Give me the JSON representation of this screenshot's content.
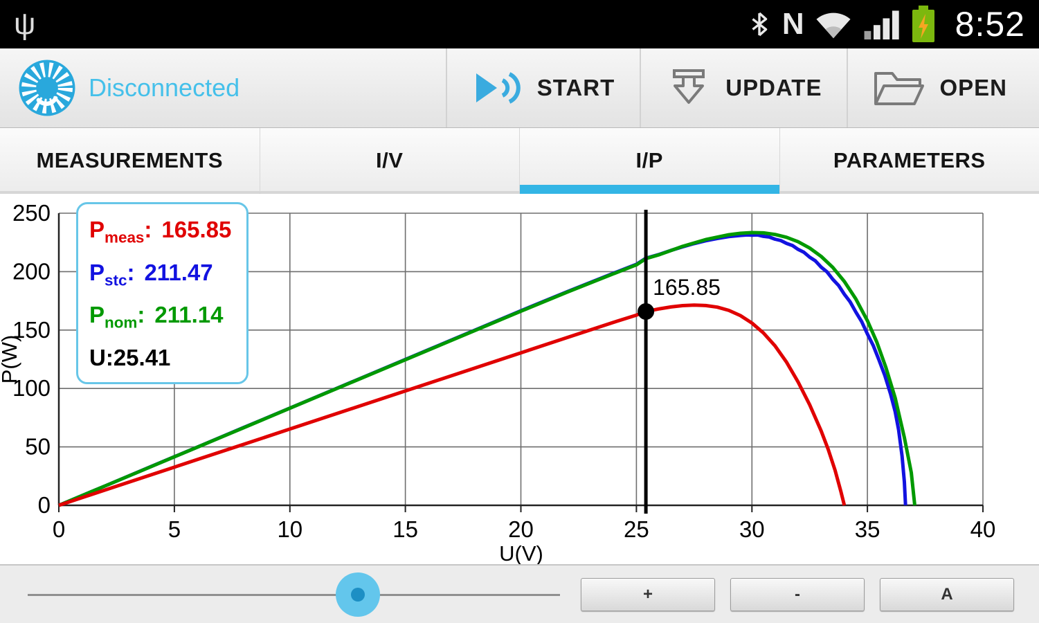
{
  "status_bar": {
    "time": "8:52",
    "icons": [
      {
        "name": "usb-icon",
        "glyph": "ψ"
      },
      {
        "name": "bluetooth-icon"
      },
      {
        "name": "nfc-icon",
        "glyph": "N"
      },
      {
        "name": "wifi-icon"
      },
      {
        "name": "signal-icon"
      },
      {
        "name": "battery-charging-icon"
      }
    ]
  },
  "toolbar": {
    "title": "Disconnected",
    "title_color": "#45c0ea",
    "actions": [
      {
        "label": "START",
        "icon": "play-icon"
      },
      {
        "label": "UPDATE",
        "icon": "download-icon"
      },
      {
        "label": "OPEN",
        "icon": "folder-icon"
      }
    ]
  },
  "tabs": [
    {
      "label": "MEASUREMENTS",
      "selected": false
    },
    {
      "label": "I/V",
      "selected": false
    },
    {
      "label": "I/P",
      "selected": true
    },
    {
      "label": "PARAMETERS",
      "selected": false
    }
  ],
  "accent_color": "#33b5e5",
  "chart_data": {
    "type": "line",
    "title": "",
    "xlabel": "U(V)",
    "ylabel": "P(W)",
    "xlim": [
      0,
      40
    ],
    "ylim": [
      0,
      250
    ],
    "xticks": [
      0,
      5,
      10,
      15,
      20,
      25,
      30,
      35,
      40
    ],
    "yticks": [
      0,
      50,
      100,
      150,
      200,
      250
    ],
    "grid": true,
    "legend_position": "top-left",
    "cursor": {
      "u": 25.41,
      "p": 165.85,
      "label": "165.85"
    },
    "legend": {
      "items": [
        {
          "prefix": "P",
          "sub": "meas",
          "sep": ":",
          "value": "165.85",
          "color": "#e00000"
        },
        {
          "prefix": "P",
          "sub": "stc",
          "sep": ":",
          "value": "211.47",
          "color": "#1212e0"
        },
        {
          "prefix": "P",
          "sub": "nom",
          "sep": ":",
          "value": "211.14",
          "color": "#009900"
        }
      ],
      "u_label": "U:25.41"
    },
    "series": [
      {
        "name": "Pstc",
        "color": "#1212e0",
        "points": [
          [
            0,
            0
          ],
          [
            2,
            16.6
          ],
          [
            4,
            33.3
          ],
          [
            6,
            49.9
          ],
          [
            8,
            66.6
          ],
          [
            10,
            83.2
          ],
          [
            12,
            99.9
          ],
          [
            14,
            116.5
          ],
          [
            16,
            133.2
          ],
          [
            18,
            149.8
          ],
          [
            20,
            166.5
          ],
          [
            22,
            182.8
          ],
          [
            24,
            198.6
          ],
          [
            25,
            206.3
          ],
          [
            25.41,
            211.47
          ],
          [
            26,
            214.8
          ],
          [
            26.5,
            218.2
          ],
          [
            27,
            221.2
          ],
          [
            27.5,
            224.0
          ],
          [
            28,
            226.4
          ],
          [
            28.5,
            228.4
          ],
          [
            29,
            230.0
          ],
          [
            29.5,
            231.0
          ],
          [
            29.8,
            231.4
          ],
          [
            30,
            231.2
          ],
          [
            30.25,
            231.4
          ],
          [
            30.5,
            230.2
          ],
          [
            30.75,
            229.6
          ],
          [
            31,
            227.8
          ],
          [
            31.25,
            226.6
          ],
          [
            31.5,
            224.2
          ],
          [
            31.75,
            222.4
          ],
          [
            32,
            219.0
          ],
          [
            32.25,
            216.6
          ],
          [
            32.5,
            212.4
          ],
          [
            32.75,
            209.2
          ],
          [
            33,
            203.8
          ],
          [
            33.25,
            199.8
          ],
          [
            33.5,
            193.4
          ],
          [
            33.75,
            188.2
          ],
          [
            34,
            180.6
          ],
          [
            34.25,
            174.2
          ],
          [
            34.5,
            165.4
          ],
          [
            34.75,
            157.2
          ],
          [
            35,
            146.6
          ],
          [
            35.25,
            136.8
          ],
          [
            35.5,
            124.4
          ],
          [
            35.75,
            111.2
          ],
          [
            36,
            95.4
          ],
          [
            36.2,
            80.2
          ],
          [
            36.35,
            64.6
          ],
          [
            36.5,
            42.0
          ],
          [
            36.6,
            20.0
          ],
          [
            36.65,
            0
          ]
        ]
      },
      {
        "name": "Pnom",
        "color": "#009900",
        "points": [
          [
            0,
            0
          ],
          [
            2,
            16.6
          ],
          [
            4,
            33.2
          ],
          [
            6,
            49.8
          ],
          [
            8,
            66.4
          ],
          [
            10,
            83.1
          ],
          [
            12,
            99.7
          ],
          [
            14,
            116.3
          ],
          [
            16,
            132.9
          ],
          [
            18,
            149.5
          ],
          [
            20,
            166.1
          ],
          [
            22,
            182.4
          ],
          [
            24,
            198.1
          ],
          [
            25,
            205.8
          ],
          [
            25.41,
            211.14
          ],
          [
            26,
            214.6
          ],
          [
            27,
            221.6
          ],
          [
            28,
            227.4
          ],
          [
            29,
            231.6
          ],
          [
            29.5,
            232.8
          ],
          [
            30,
            233.4
          ],
          [
            30.5,
            233.2
          ],
          [
            31,
            231.8
          ],
          [
            31.5,
            229.4
          ],
          [
            32,
            225.6
          ],
          [
            32.5,
            220.2
          ],
          [
            33,
            213.0
          ],
          [
            33.5,
            203.6
          ],
          [
            34,
            191.6
          ],
          [
            34.5,
            176.6
          ],
          [
            35,
            158.0
          ],
          [
            35.4,
            140.0
          ],
          [
            35.8,
            118.0
          ],
          [
            36.2,
            92.0
          ],
          [
            36.6,
            58.0
          ],
          [
            36.9,
            28.0
          ],
          [
            37.05,
            0
          ]
        ]
      },
      {
        "name": "Pmeas",
        "color": "#e00000",
        "points": [
          [
            0,
            0
          ],
          [
            2,
            13.1
          ],
          [
            4,
            26.1
          ],
          [
            6,
            39.2
          ],
          [
            8,
            52.2
          ],
          [
            10,
            65.3
          ],
          [
            12,
            78.3
          ],
          [
            14,
            91.4
          ],
          [
            16,
            104.4
          ],
          [
            18,
            117.5
          ],
          [
            20,
            130.5
          ],
          [
            22,
            143.6
          ],
          [
            24,
            156.6
          ],
          [
            25,
            162.8
          ],
          [
            25.41,
            165.85
          ],
          [
            26,
            168.2
          ],
          [
            26.5,
            169.8
          ],
          [
            27,
            170.9
          ],
          [
            27.5,
            171.3
          ],
          [
            28,
            171.0
          ],
          [
            28.5,
            169.6
          ],
          [
            29,
            166.8
          ],
          [
            29.5,
            162.4
          ],
          [
            30,
            156.0
          ],
          [
            30.5,
            147.5
          ],
          [
            31,
            136.5
          ],
          [
            31.5,
            122.5
          ],
          [
            32,
            105.5
          ],
          [
            32.5,
            86.0
          ],
          [
            33,
            63.5
          ],
          [
            33.3,
            48.0
          ],
          [
            33.6,
            30.0
          ],
          [
            33.85,
            12.0
          ],
          [
            34,
            0
          ]
        ]
      }
    ]
  },
  "bottom_bar": {
    "slider": {
      "value": 0.62
    },
    "buttons": [
      {
        "label": "+"
      },
      {
        "label": "-"
      },
      {
        "label": "A"
      }
    ]
  }
}
